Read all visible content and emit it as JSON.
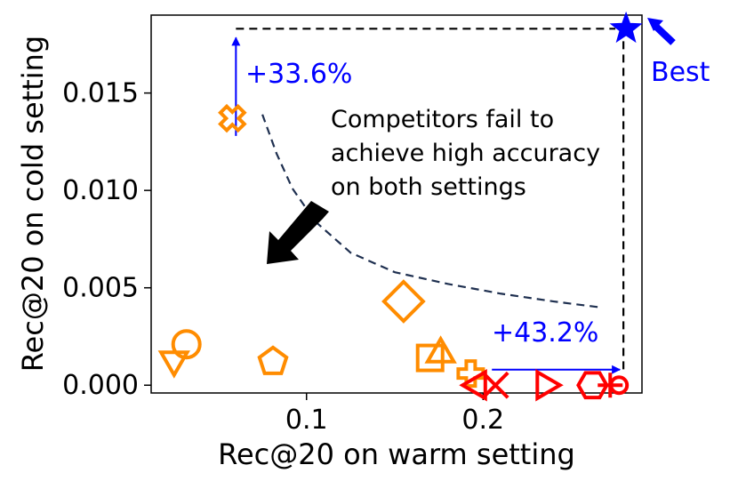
{
  "chart_data": {
    "type": "scatter",
    "title": "",
    "xlabel": "Rec@20 on warm setting",
    "ylabel": "Rec@20 on cold setting",
    "xlim": [
      0.012,
      0.29
    ],
    "ylim": [
      -0.0004,
      0.019
    ],
    "xticks": [
      {
        "value": 0.1,
        "label": "0.1"
      },
      {
        "value": 0.2,
        "label": "0.2"
      }
    ],
    "yticks": [
      {
        "value": 0.0,
        "label": "0.000"
      },
      {
        "value": 0.005,
        "label": "0.005"
      },
      {
        "value": 0.01,
        "label": "0.010"
      },
      {
        "value": 0.015,
        "label": "0.015"
      }
    ],
    "grid": false,
    "colors": {
      "orange": "#ff8c00",
      "red": "#ff0000",
      "blue": "#0000ff",
      "black": "#000000",
      "frontier": "#1f3050"
    },
    "points": [
      {
        "marker": "triangle-down",
        "color": "orange",
        "x": 0.025,
        "y": 0.0013
      },
      {
        "marker": "circle",
        "color": "orange",
        "x": 0.032,
        "y": 0.0021
      },
      {
        "marker": "x-thick",
        "color": "orange",
        "x": 0.058,
        "y": 0.0137
      },
      {
        "marker": "pentagon",
        "color": "orange",
        "x": 0.081,
        "y": 0.0012
      },
      {
        "marker": "diamond",
        "color": "orange",
        "x": 0.155,
        "y": 0.0043
      },
      {
        "marker": "square",
        "color": "orange",
        "x": 0.17,
        "y": 0.0014
      },
      {
        "marker": "triangle-up",
        "color": "orange",
        "x": 0.176,
        "y": 0.0016
      },
      {
        "marker": "plus-thick",
        "color": "orange",
        "x": 0.193,
        "y": 0.0006
      },
      {
        "marker": "triangle-left",
        "color": "red",
        "x": 0.197,
        "y": 0.0
      },
      {
        "marker": "x",
        "color": "red",
        "x": 0.207,
        "y": 0.0
      },
      {
        "marker": "triangle-right",
        "color": "red",
        "x": 0.235,
        "y": 0.0
      },
      {
        "marker": "hexagon",
        "color": "red",
        "x": 0.262,
        "y": 0.0
      },
      {
        "marker": "plus",
        "color": "red",
        "x": 0.272,
        "y": 0.0
      },
      {
        "marker": "circle-small",
        "color": "red",
        "x": 0.277,
        "y": 0.0
      },
      {
        "marker": "star",
        "color": "blue",
        "x": 0.281,
        "y": 0.0183
      }
    ],
    "frontier_curve": [
      [
        0.075,
        0.0139
      ],
      [
        0.083,
        0.0119
      ],
      [
        0.092,
        0.0101
      ],
      [
        0.105,
        0.0084
      ],
      [
        0.125,
        0.0068
      ],
      [
        0.15,
        0.0058
      ],
      [
        0.18,
        0.0052
      ],
      [
        0.21,
        0.0047
      ],
      [
        0.24,
        0.0043
      ],
      [
        0.266,
        0.004
      ]
    ],
    "annotations": {
      "cold_gain": "+33.6%",
      "warm_gain": "+43.2%",
      "best": "Best",
      "competitors": [
        "Competitors fail to",
        "achieve high accuracy",
        "on both settings"
      ]
    }
  }
}
